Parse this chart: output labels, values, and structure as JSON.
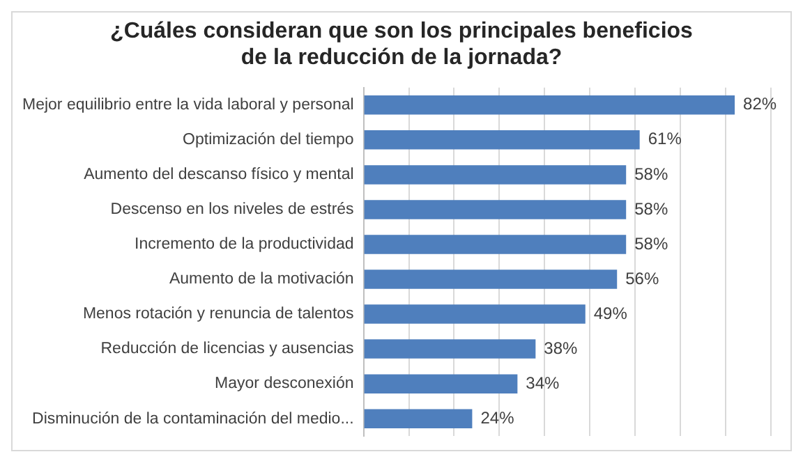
{
  "chart_data": {
    "type": "bar",
    "orientation": "horizontal",
    "title": "¿Cuáles consideran que son los principales beneficios de la reducción de la jornada?",
    "categories": [
      "Mejor equilibrio entre la vida laboral y personal",
      "Optimización del tiempo",
      "Aumento del descanso físico y mental",
      "Descenso en los niveles de estrés",
      "Incremento de la productividad",
      "Aumento de la motivación",
      "Menos rotación y renuncia de talentos",
      "Reducción de licencias y ausencias",
      "Mayor desconexión",
      "Disminución de la contaminación del medio..."
    ],
    "values": [
      82,
      61,
      58,
      58,
      58,
      56,
      49,
      38,
      34,
      24
    ],
    "value_labels": [
      "82%",
      "61%",
      "58%",
      "58%",
      "58%",
      "56%",
      "49%",
      "38%",
      "34%",
      "24%"
    ],
    "color": "#4f7fbd",
    "xlim": [
      0,
      90
    ],
    "xticks": [
      {
        "value": 0,
        "label": null
      },
      {
        "value": 10,
        "label": null
      },
      {
        "value": 20,
        "label": null
      },
      {
        "value": 30,
        "label": null
      },
      {
        "value": 40,
        "label": null
      },
      {
        "value": 50,
        "label": null
      },
      {
        "value": 60,
        "label": null
      },
      {
        "value": 70,
        "label": null
      },
      {
        "value": 80,
        "label": null
      },
      {
        "value": 90,
        "label": null
      }
    ],
    "grid": "x",
    "tick_labels": "y",
    "legend": false
  }
}
